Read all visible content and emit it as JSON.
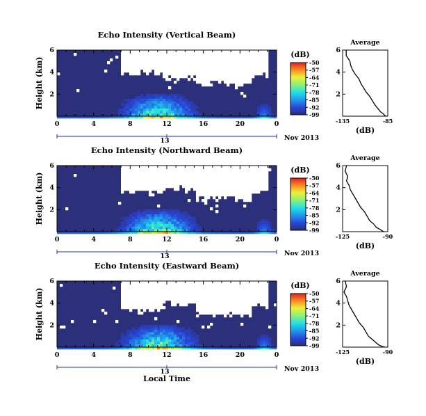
{
  "figure": {
    "xlabel": "Local Time"
  },
  "chart_data": [
    {
      "type": "heatmap",
      "title": "Echo Intensity (Vertical Beam)",
      "ylabel": "Height (km)",
      "x_ticks": [
        "0",
        "4",
        "8",
        "12",
        "16",
        "20",
        "0"
      ],
      "y_ticks": [
        "6",
        "4",
        "2"
      ],
      "xlim": [
        0,
        24
      ],
      "ylim": [
        0,
        6
      ],
      "date_center": "13",
      "date_label": "Nov 2013",
      "colorbar": {
        "unit": "(dB)",
        "ticks": [
          "-50",
          "-57",
          "-64",
          "-71",
          "-78",
          "-85",
          "-92",
          "-99"
        ],
        "range": [
          -99,
          -50
        ]
      },
      "profile": {
        "title": "Average",
        "xlabel": "(dB)",
        "x_ticks": [
          "-135",
          "-85"
        ],
        "xlim": [
          -135,
          -85
        ],
        "y_ticks": [
          "6",
          "4",
          "2"
        ],
        "ylim": [
          0,
          6
        ],
        "x": [
          -131,
          -131,
          -127,
          -126,
          -124,
          -121,
          -117,
          -115,
          -112,
          -109,
          -105,
          -102,
          -99,
          -96,
          -93,
          -90,
          -88,
          -87
        ],
        "y": [
          6.0,
          5.5,
          5.0,
          4.6,
          4.2,
          3.8,
          3.4,
          3.0,
          2.6,
          2.2,
          1.8,
          1.4,
          1.0,
          0.7,
          0.4,
          0.2,
          0.05,
          0.0
        ]
      }
    },
    {
      "type": "heatmap",
      "title": "Echo Intensity (Northward Beam)",
      "ylabel": "Height (km)",
      "x_ticks": [
        "0",
        "4",
        "8",
        "12",
        "16",
        "20",
        "0"
      ],
      "y_ticks": [
        "6",
        "4",
        "2"
      ],
      "xlim": [
        0,
        24
      ],
      "ylim": [
        0,
        6
      ],
      "date_center": "13",
      "date_label": "Nov 2013",
      "colorbar": {
        "unit": "(dB)",
        "ticks": [
          "-50",
          "-57",
          "-64",
          "-71",
          "-78",
          "-85",
          "-92",
          "-99"
        ],
        "range": [
          -99,
          -50
        ]
      },
      "profile": {
        "title": "Average",
        "xlabel": "(dB)",
        "x_ticks": [
          "-125",
          "-90"
        ],
        "xlim": [
          -125,
          -90
        ],
        "y_ticks": [
          "6",
          "4",
          "2"
        ],
        "ylim": [
          0,
          6
        ],
        "x": [
          -122,
          -123,
          -121,
          -122,
          -120,
          -119,
          -117,
          -115,
          -113,
          -111,
          -108,
          -106,
          -104,
          -101,
          -99,
          -96,
          -94,
          -93
        ],
        "y": [
          6.0,
          5.5,
          5.0,
          4.6,
          4.2,
          3.8,
          3.4,
          3.0,
          2.6,
          2.2,
          1.8,
          1.4,
          1.0,
          0.7,
          0.4,
          0.2,
          0.05,
          0.0
        ]
      }
    },
    {
      "type": "heatmap",
      "title": "Echo Intensity (Eastward Beam)",
      "ylabel": "Height (km)",
      "x_ticks": [
        "0",
        "4",
        "8",
        "12",
        "16",
        "20",
        "0"
      ],
      "y_ticks": [
        "6",
        "4",
        "2"
      ],
      "xlim": [
        0,
        24
      ],
      "ylim": [
        0,
        6
      ],
      "date_center": "13",
      "date_label": "Nov 2013",
      "colorbar": {
        "unit": "(dB)",
        "ticks": [
          "-50",
          "-57",
          "-64",
          "-71",
          "-78",
          "-85",
          "-92",
          "-99"
        ],
        "range": [
          -99,
          -50
        ]
      },
      "profile": {
        "title": "Average",
        "xlabel": "(dB)",
        "x_ticks": [
          "-125",
          "-90"
        ],
        "xlim": [
          -125,
          -90
        ],
        "y_ticks": [
          "6",
          "4",
          "2"
        ],
        "ylim": [
          0,
          6
        ],
        "x": [
          -123,
          -122,
          -124,
          -122,
          -121,
          -120,
          -118,
          -116,
          -114,
          -112,
          -109,
          -107,
          -105,
          -102,
          -99,
          -97,
          -94,
          -92
        ],
        "y": [
          6.0,
          5.5,
          5.0,
          4.6,
          4.2,
          3.8,
          3.4,
          3.0,
          2.6,
          2.2,
          1.8,
          1.4,
          1.0,
          0.7,
          0.4,
          0.2,
          0.05,
          0.0
        ]
      }
    }
  ]
}
